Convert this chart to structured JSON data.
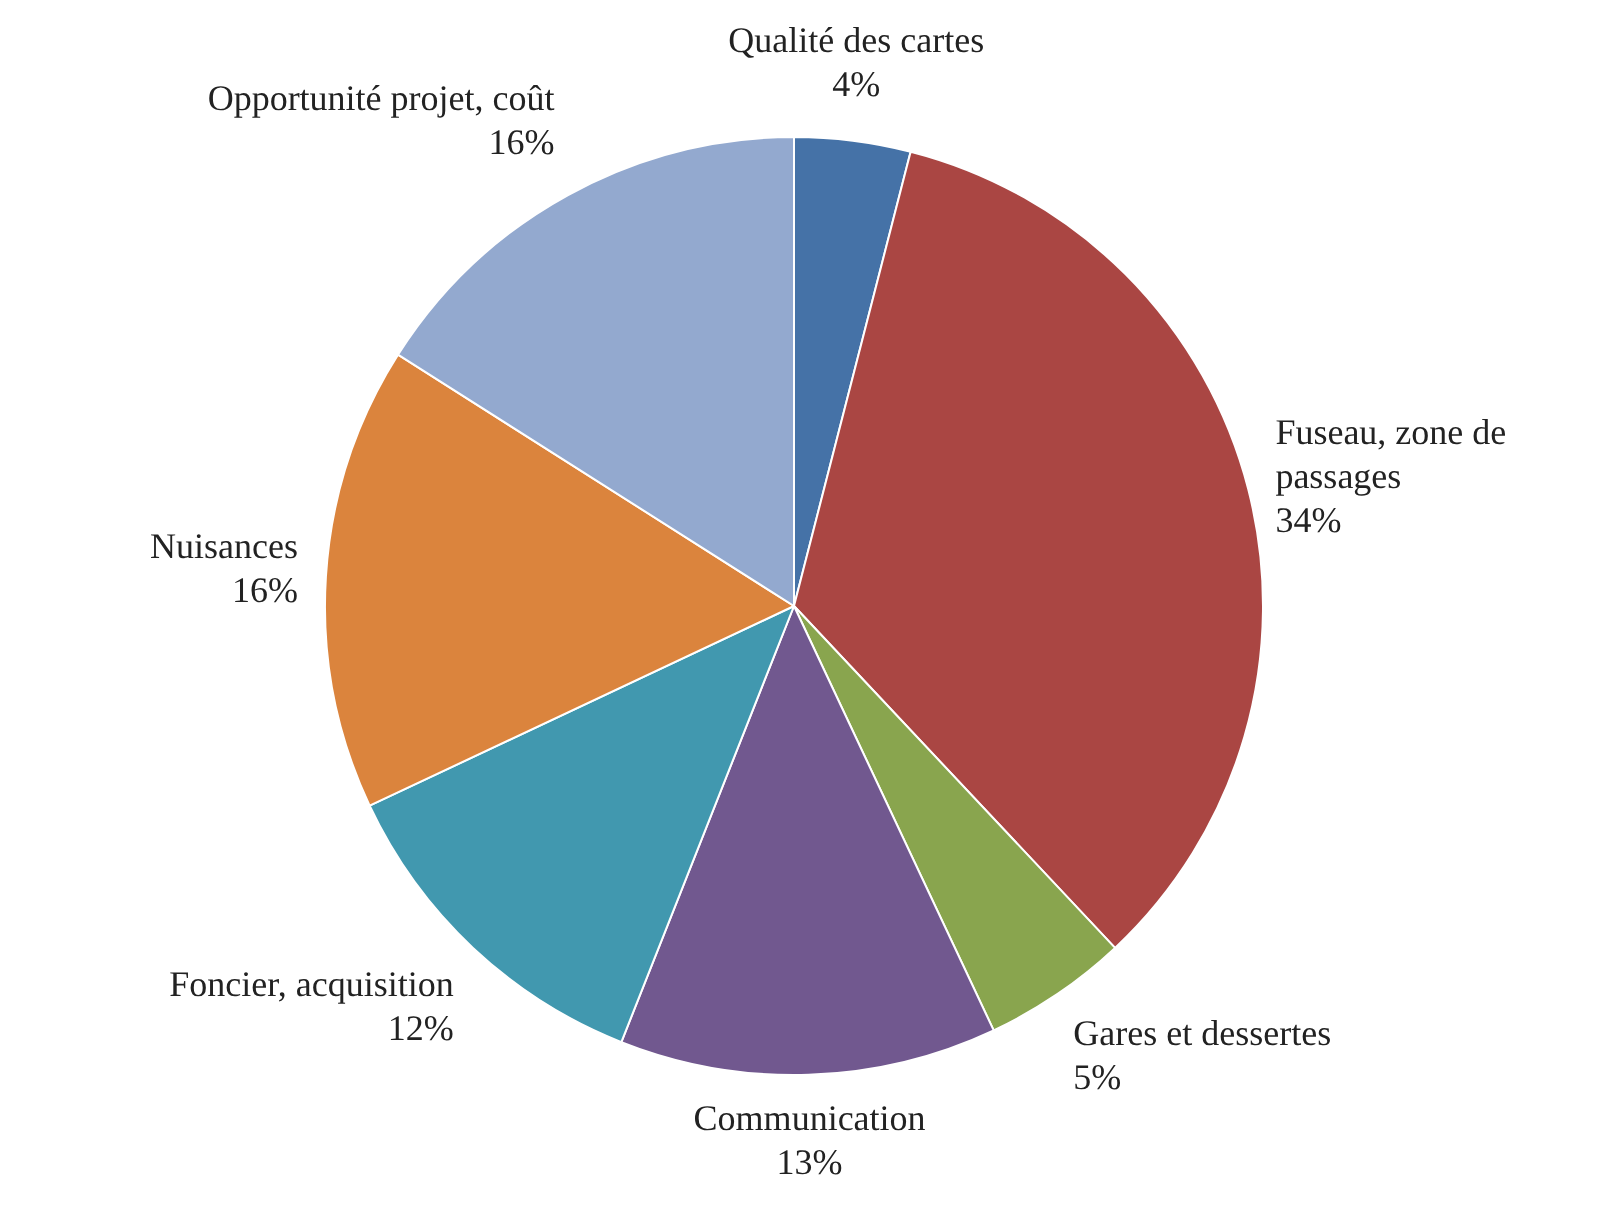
{
  "chart_data": {
    "type": "pie",
    "categories": [
      "Qualité des cartes",
      "Fuseau, zone de passages",
      "Gares et dessertes",
      "Communication",
      "Foncier, acquisition",
      "Nuisances",
      "Opportunité projet, coût"
    ],
    "values": [
      4,
      34,
      5,
      13,
      12,
      16,
      16
    ],
    "value_labels": [
      "4%",
      "34%",
      "5%",
      "13%",
      "12%",
      "16%",
      "16%"
    ],
    "colors": [
      "#4572a7",
      "#aa4643",
      "#89a54e",
      "#71588f",
      "#4198af",
      "#db843d",
      "#93a9cf"
    ],
    "legend": false
  }
}
